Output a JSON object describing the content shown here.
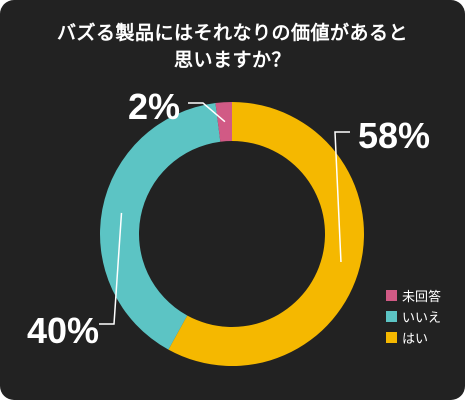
{
  "chart_data": {
    "type": "pie",
    "title_lines": [
      "バズる製品にはそれなりの価値があると",
      "思いますか？"
    ],
    "categories": [
      "はい",
      "いいえ",
      "未回答"
    ],
    "values": [
      58,
      40,
      2
    ],
    "value_labels": [
      "58%",
      "40%",
      "2%"
    ],
    "colors": [
      "#F5B800",
      "#5CC4C4",
      "#D15A85"
    ],
    "legend_order": [
      "未回答",
      "いいえ",
      "はい"
    ],
    "legend_placement": "bottom-right"
  },
  "colors": {
    "background": "#222222",
    "text": "#ffffff"
  }
}
